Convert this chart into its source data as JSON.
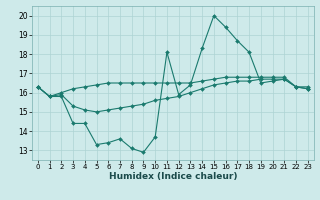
{
  "xlabel": "Humidex (Indice chaleur)",
  "ylabel": "",
  "bg_color": "#ceeaea",
  "grid_color": "#aed4d4",
  "line_color": "#1a7a6e",
  "xlim": [
    -0.5,
    23.5
  ],
  "ylim": [
    12.5,
    20.5
  ],
  "yticks": [
    13,
    14,
    15,
    16,
    17,
    18,
    19,
    20
  ],
  "xticks": [
    0,
    1,
    2,
    3,
    4,
    5,
    6,
    7,
    8,
    9,
    10,
    11,
    12,
    13,
    14,
    15,
    16,
    17,
    18,
    19,
    20,
    21,
    22,
    23
  ],
  "series": [
    {
      "x": [
        0,
        1,
        2,
        3,
        4,
        5,
        6,
        7,
        8,
        9,
        10,
        11,
        12,
        13,
        14,
        15,
        16,
        17,
        18,
        19,
        20,
        21,
        22,
        23
      ],
      "y": [
        16.3,
        15.8,
        15.8,
        14.4,
        14.4,
        13.3,
        13.4,
        13.6,
        13.1,
        12.9,
        13.7,
        18.1,
        15.9,
        16.4,
        18.3,
        20.0,
        19.4,
        18.7,
        18.1,
        16.5,
        16.6,
        16.7,
        16.3,
        16.3
      ]
    },
    {
      "x": [
        0,
        1,
        2,
        3,
        4,
        5,
        6,
        7,
        8,
        9,
        10,
        11,
        12,
        13,
        14,
        15,
        16,
        17,
        18,
        19,
        20,
        21,
        22,
        23
      ],
      "y": [
        16.3,
        15.8,
        15.9,
        15.3,
        15.1,
        15.0,
        15.1,
        15.2,
        15.3,
        15.4,
        15.6,
        15.7,
        15.8,
        16.0,
        16.2,
        16.4,
        16.5,
        16.6,
        16.6,
        16.7,
        16.7,
        16.7,
        16.3,
        16.2
      ]
    },
    {
      "x": [
        0,
        1,
        2,
        3,
        4,
        5,
        6,
        7,
        8,
        9,
        10,
        11,
        12,
        13,
        14,
        15,
        16,
        17,
        18,
        19,
        20,
        21,
        22,
        23
      ],
      "y": [
        16.3,
        15.8,
        16.0,
        16.2,
        16.3,
        16.4,
        16.5,
        16.5,
        16.5,
        16.5,
        16.5,
        16.5,
        16.5,
        16.5,
        16.6,
        16.7,
        16.8,
        16.8,
        16.8,
        16.8,
        16.8,
        16.8,
        16.3,
        16.2
      ]
    }
  ]
}
